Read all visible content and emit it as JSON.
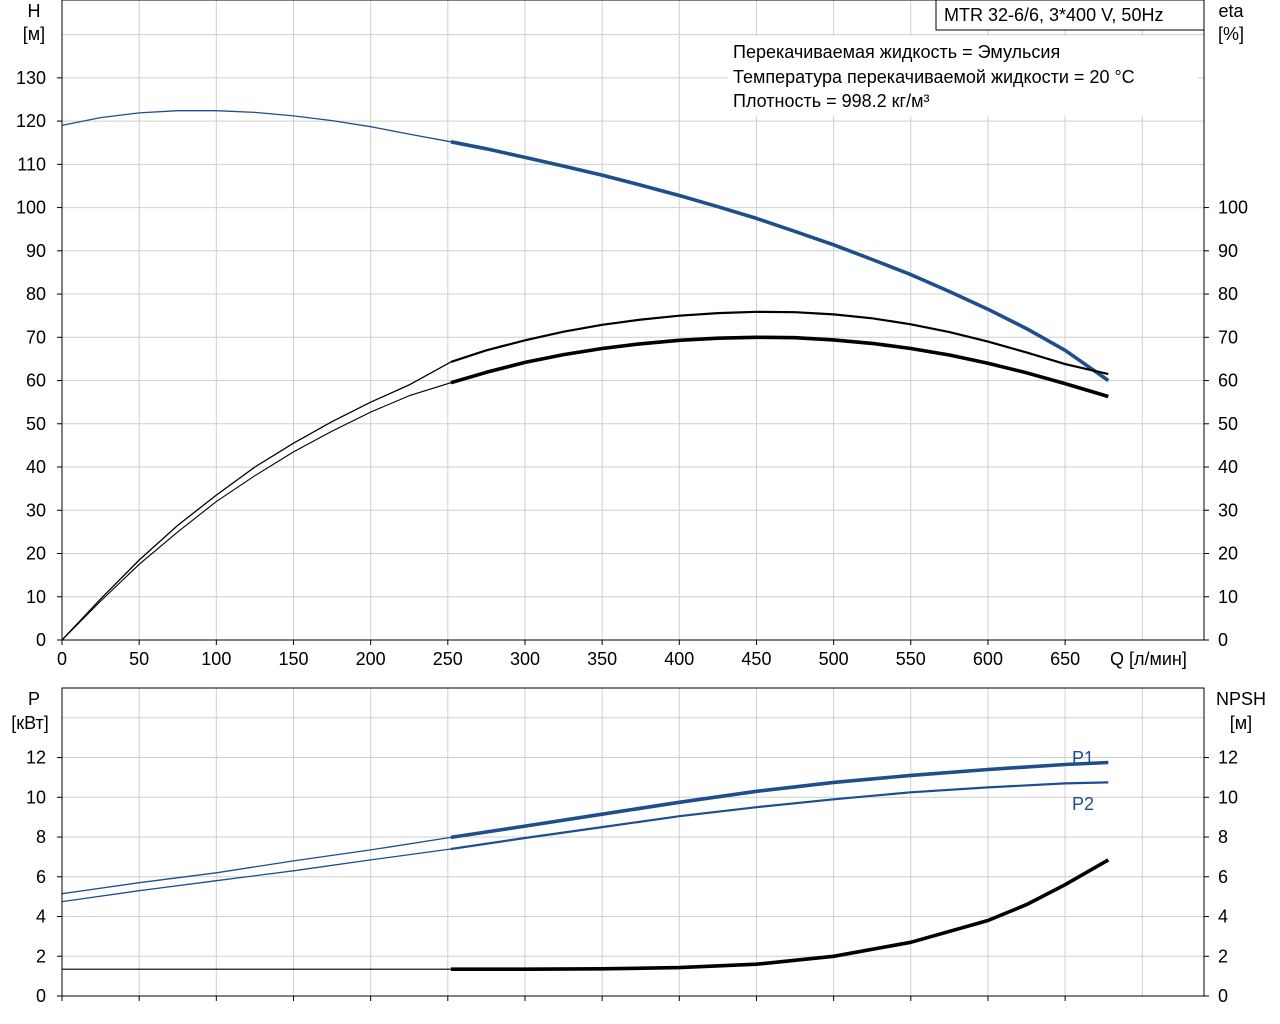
{
  "title_box": "MTR 32-6/6, 3*400 V, 50Hz",
  "info_lines": [
    "Перекачиваемая жидкость = Эмульсия",
    "Температура перекачиваемой жидкости = 20 °C",
    "Плотность = 998.2 кг/м³"
  ],
  "colors": {
    "head": "#1f4e8c",
    "eta": "#000000",
    "power": "#1f4e8c",
    "npsh": "#000000",
    "grid": "#cfcfcf"
  },
  "chart_data": [
    {
      "type": "line",
      "panel": "top",
      "ylabel_left": [
        "H",
        "[м]"
      ],
      "ylabel_right": [
        "eta",
        "[%]"
      ],
      "xlabel": "Q [л/мин]",
      "xlim": [
        0,
        740
      ],
      "ylim_left": [
        0,
        148
      ],
      "ylim_right": [
        0,
        148
      ],
      "x_ticks": [
        0,
        50,
        100,
        150,
        200,
        250,
        300,
        350,
        400,
        450,
        500,
        550,
        600,
        650
      ],
      "y_ticks_left": [
        0,
        10,
        20,
        30,
        40,
        50,
        60,
        70,
        80,
        90,
        100,
        110,
        120,
        130
      ],
      "y_ticks_right": [
        0,
        10,
        20,
        30,
        40,
        50,
        60,
        70,
        80,
        90,
        100
      ],
      "grid": true,
      "series": [
        {
          "key": "head",
          "axis": "left",
          "operating_from": 252,
          "x": [
            0,
            25,
            50,
            75,
            100,
            125,
            150,
            175,
            200,
            225,
            252,
            275,
            300,
            325,
            350,
            375,
            400,
            425,
            450,
            475,
            500,
            525,
            550,
            575,
            600,
            625,
            650,
            678
          ],
          "y": [
            119,
            120.8,
            121.9,
            122.4,
            122.4,
            122.0,
            121.2,
            120.1,
            118.7,
            117.0,
            115.2,
            113.6,
            111.6,
            109.6,
            107.5,
            105.2,
            102.8,
            100.2,
            97.5,
            94.5,
            91.4,
            88.0,
            84.5,
            80.6,
            76.5,
            72.0,
            67.0,
            60.0
          ]
        },
        {
          "key": "eta_upper",
          "axis": "right",
          "operating_from": 252,
          "x": [
            0,
            25,
            50,
            75,
            100,
            125,
            150,
            175,
            200,
            225,
            252,
            275,
            300,
            325,
            350,
            375,
            400,
            425,
            450,
            475,
            500,
            525,
            550,
            575,
            600,
            625,
            650,
            678
          ],
          "y": [
            0,
            9.5,
            18.5,
            26.5,
            33.5,
            40,
            45.5,
            50.5,
            55,
            59,
            64.3,
            67,
            69.3,
            71.3,
            72.9,
            74.1,
            75.0,
            75.6,
            75.9,
            75.8,
            75.3,
            74.4,
            73.0,
            71.2,
            69.0,
            66.5,
            63.8,
            61.5
          ]
        },
        {
          "key": "eta_lower",
          "axis": "right",
          "operating_from": 252,
          "x": [
            0,
            25,
            50,
            75,
            100,
            125,
            150,
            175,
            200,
            225,
            252,
            275,
            300,
            325,
            350,
            375,
            400,
            425,
            450,
            475,
            500,
            525,
            550,
            575,
            600,
            625,
            650,
            678
          ],
          "y": [
            0,
            9,
            17.5,
            25,
            32,
            38,
            43.5,
            48.3,
            52.7,
            56.5,
            59.5,
            61.9,
            64.2,
            66.0,
            67.4,
            68.5,
            69.3,
            69.8,
            70.0,
            69.9,
            69.4,
            68.6,
            67.4,
            65.9,
            64.0,
            61.8,
            59.3,
            56.3
          ]
        }
      ]
    },
    {
      "type": "line",
      "panel": "bottom",
      "ylabel_left": [
        "P",
        "[кВт]"
      ],
      "ylabel_right": [
        "NPSH",
        "[м]"
      ],
      "xlim": [
        0,
        740
      ],
      "ylim_left": [
        0,
        15.5
      ],
      "ylim_right": [
        0,
        15.5
      ],
      "y_ticks_left": [
        0,
        2,
        4,
        6,
        8,
        10,
        12
      ],
      "y_ticks_right": [
        0,
        2,
        4,
        6,
        8,
        10,
        12
      ],
      "grid": true,
      "series": [
        {
          "key": "P1",
          "name": "P1",
          "axis": "left",
          "operating_from": 252,
          "x": [
            0,
            50,
            100,
            150,
            200,
            252,
            300,
            350,
            400,
            450,
            500,
            550,
            600,
            650,
            678
          ],
          "y": [
            5.15,
            5.7,
            6.2,
            6.8,
            7.35,
            7.98,
            8.55,
            9.15,
            9.75,
            10.3,
            10.75,
            11.1,
            11.4,
            11.65,
            11.75
          ]
        },
        {
          "key": "P2",
          "name": "P2",
          "axis": "left",
          "operating_from": 252,
          "x": [
            0,
            50,
            100,
            150,
            200,
            252,
            300,
            350,
            400,
            450,
            500,
            550,
            600,
            650,
            678
          ],
          "y": [
            4.75,
            5.3,
            5.8,
            6.3,
            6.85,
            7.4,
            7.95,
            8.5,
            9.05,
            9.5,
            9.9,
            10.25,
            10.5,
            10.7,
            10.75
          ]
        },
        {
          "key": "NPSH",
          "axis": "right",
          "operating_from": 252,
          "x": [
            0,
            100,
            200,
            252,
            300,
            350,
            400,
            450,
            500,
            550,
            600,
            625,
            650,
            678
          ],
          "y": [
            1.35,
            1.35,
            1.35,
            1.35,
            1.35,
            1.37,
            1.43,
            1.6,
            2.0,
            2.7,
            3.8,
            4.6,
            5.6,
            6.85
          ]
        }
      ]
    }
  ]
}
